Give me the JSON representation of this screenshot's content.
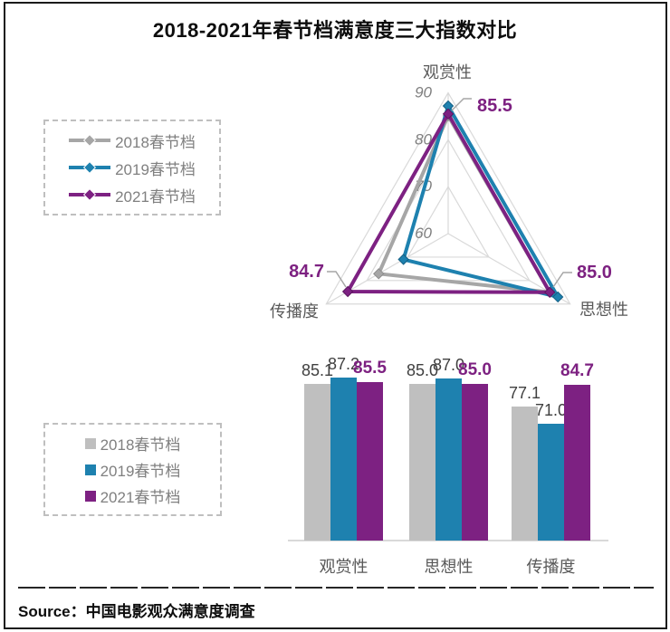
{
  "title": "2018-2021年春节档满意度三大指数对比",
  "source": "Source：中国电影观众满意度调查",
  "colors": {
    "series_2018_line": "#A6A6A6",
    "series_2018_bar": "#BFBFBF",
    "series_2019": "#1E81AF",
    "series_2021": "#7D2182",
    "emphasis_label": "#7D2181",
    "value_label": "#404040",
    "axis_text": "#595959",
    "grid": "#D9D9D9"
  },
  "chart_data": [
    {
      "type": "radar",
      "title": "",
      "categories": [
        "观赏性",
        "思想性",
        "传播度"
      ],
      "series": [
        {
          "name": "2018春节档",
          "color": "#A6A6A6",
          "values": [
            85.1,
            85.0,
            77.1
          ]
        },
        {
          "name": "2019春节档",
          "color": "#1E81AF",
          "values": [
            87.2,
            87.0,
            71.0
          ]
        },
        {
          "name": "2021春节档",
          "color": "#7D2182",
          "values": [
            85.5,
            85.0,
            84.7
          ],
          "emphasis": true
        }
      ],
      "axis": {
        "min": 60,
        "max": 90,
        "ticks": [
          60,
          70,
          80,
          90
        ]
      },
      "callout_labels": [
        "85.5",
        "85.0",
        "84.7"
      ],
      "legend_position": "left",
      "grid": "triangular-rings"
    },
    {
      "type": "bar",
      "categories": [
        "观赏性",
        "思想性",
        "传播度"
      ],
      "series": [
        {
          "name": "2018春节档",
          "color": "#BFBFBF",
          "values": [
            85.1,
            85.0,
            77.1
          ]
        },
        {
          "name": "2019春节档",
          "color": "#1E81AF",
          "values": [
            87.2,
            87.0,
            71.0
          ]
        },
        {
          "name": "2021春节档",
          "color": "#7D2182",
          "values": [
            85.5,
            85.0,
            84.7
          ],
          "emphasis": true
        }
      ],
      "ylim": [
        30,
        90
      ],
      "value_labels": true,
      "legend_position": "left"
    }
  ]
}
